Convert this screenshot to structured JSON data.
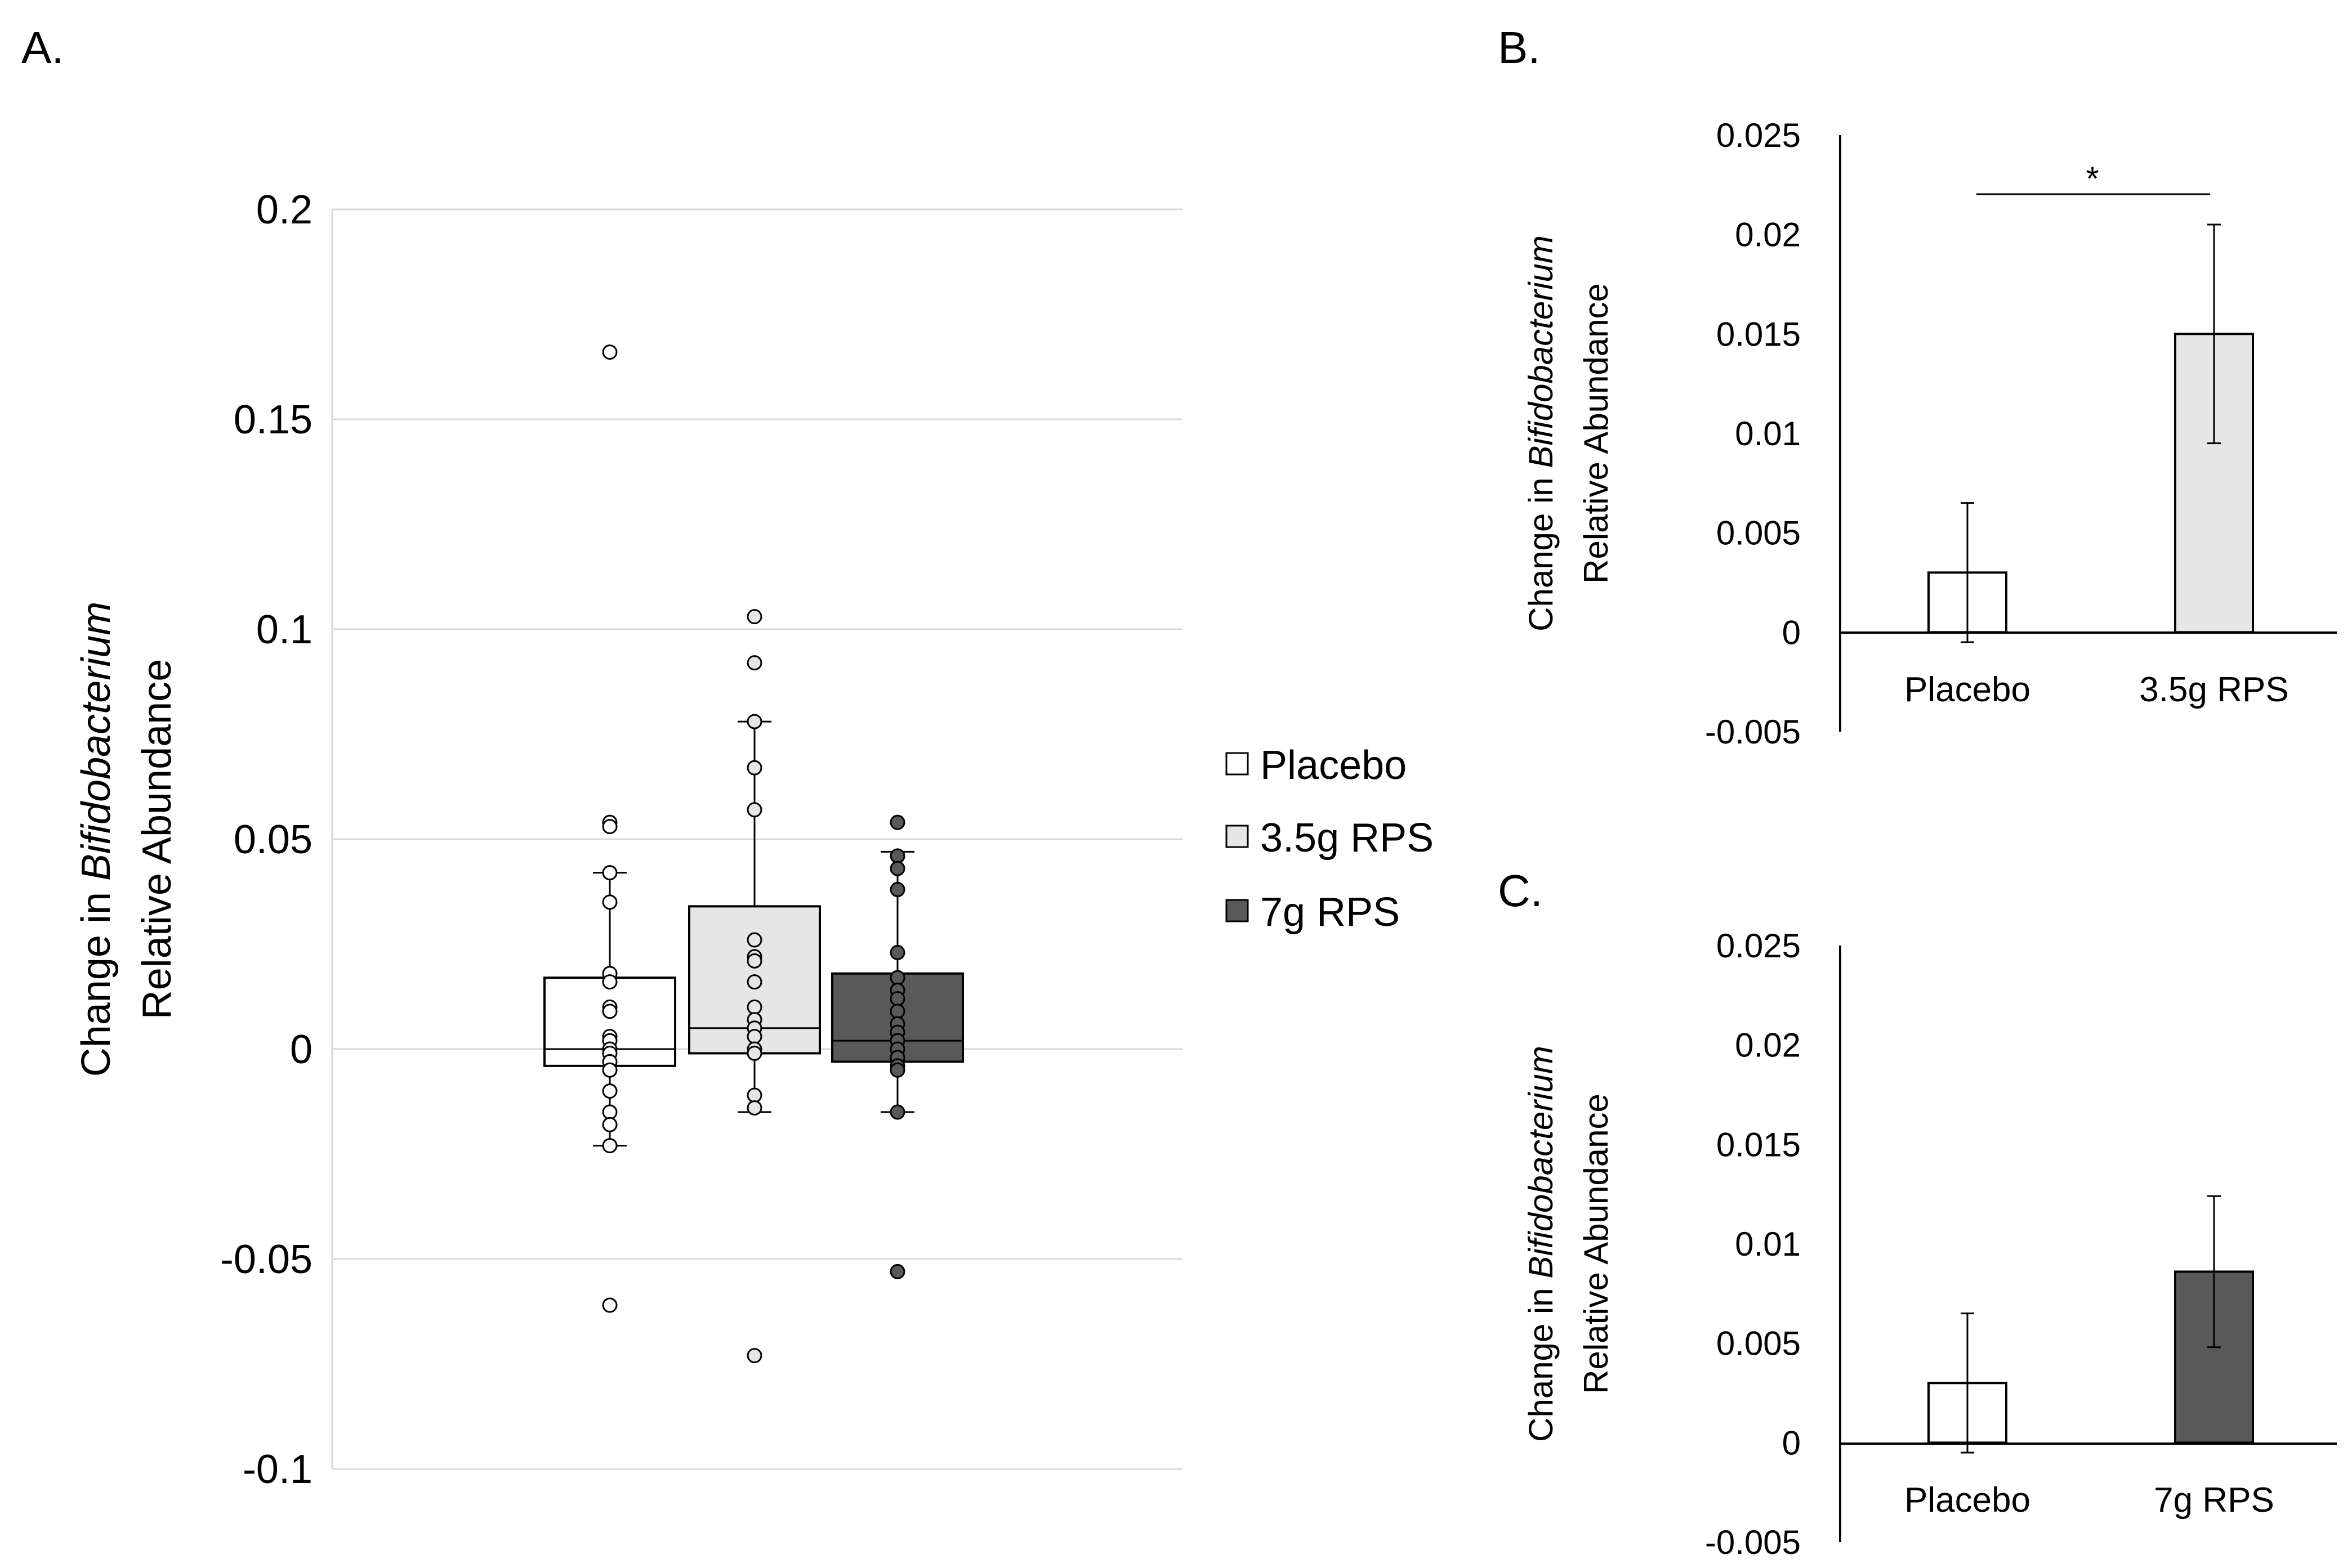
{
  "panels": {
    "a": {
      "letter": "A."
    },
    "b": {
      "letter": "B."
    },
    "c": {
      "letter": "C."
    }
  },
  "colors": {
    "placebo": "#ffffff",
    "rps35": "#e6e6e6",
    "rps7": "#595959",
    "stroke": "#000000",
    "grid": "#d9d9d9"
  },
  "chart_data": [
    {
      "id": "A",
      "type": "box",
      "ylabel_prefix": "Change in ",
      "ylabel_italic": "Bifidobacterium",
      "ylabel_line2": "Relative Abundance",
      "ylim": [
        -0.1,
        0.2
      ],
      "ytick_labels": [
        "0.2",
        "0.15",
        "0.1",
        "0.05",
        "0",
        "-0.05",
        "-0.1"
      ],
      "grid": true,
      "legend_position": "right",
      "series": [
        {
          "name": "Placebo",
          "q1": -0.004,
          "median": 0.0,
          "q3": 0.017,
          "whisker_low": -0.023,
          "whisker_high": 0.042,
          "points": [
            0.166,
            0.054,
            0.053,
            0.042,
            0.035,
            0.018,
            0.016,
            0.01,
            0.009,
            0.003,
            0.002,
            0.0,
            -0.001,
            -0.003,
            -0.005,
            -0.01,
            -0.015,
            -0.018,
            -0.023,
            -0.061
          ]
        },
        {
          "name": "3.5g RPS",
          "q1": -0.001,
          "median": 0.005,
          "q3": 0.034,
          "whisker_low": -0.015,
          "whisker_high": 0.078,
          "points": [
            0.103,
            0.092,
            0.078,
            0.067,
            0.057,
            0.026,
            0.022,
            0.021,
            0.016,
            0.01,
            0.007,
            0.005,
            0.003,
            0.0,
            -0.001,
            -0.011,
            -0.014,
            -0.073
          ]
        },
        {
          "name": "7g RPS",
          "q1": -0.003,
          "median": 0.002,
          "q3": 0.018,
          "whisker_low": -0.015,
          "whisker_high": 0.047,
          "points": [
            0.054,
            0.046,
            0.043,
            0.038,
            0.023,
            0.017,
            0.014,
            0.012,
            0.009,
            0.006,
            0.004,
            0.002,
            0.0,
            -0.002,
            -0.004,
            -0.005,
            -0.015,
            -0.053
          ]
        }
      ]
    },
    {
      "id": "B",
      "type": "bar",
      "ylabel_prefix": "Change in ",
      "ylabel_italic": "Bifidobacterium",
      "ylabel_line2": "Relative Abundance",
      "ylim": [
        -0.005,
        0.025
      ],
      "ytick_labels": [
        "0.025",
        "0.02",
        "0.015",
        "0.01",
        "0.005",
        "0",
        "-0.005"
      ],
      "grid": false,
      "categories": [
        "Placebo",
        "3.5g RPS"
      ],
      "values": [
        0.003,
        0.015
      ],
      "errors": [
        0.0035,
        0.0055
      ],
      "significance": {
        "label": "*",
        "between": [
          0,
          1
        ]
      }
    },
    {
      "id": "C",
      "type": "bar",
      "ylabel_prefix": "Change in ",
      "ylabel_italic": "Bifidobacterium",
      "ylabel_line2": "Relative Abundance",
      "ylim": [
        -0.005,
        0.025
      ],
      "ytick_labels": [
        "0.025",
        "0.02",
        "0.015",
        "0.01",
        "0.005",
        "0",
        "-0.005"
      ],
      "grid": false,
      "categories": [
        "Placebo",
        "7g RPS"
      ],
      "values": [
        0.003,
        0.0086
      ],
      "errors": [
        0.0035,
        0.0038
      ]
    }
  ]
}
